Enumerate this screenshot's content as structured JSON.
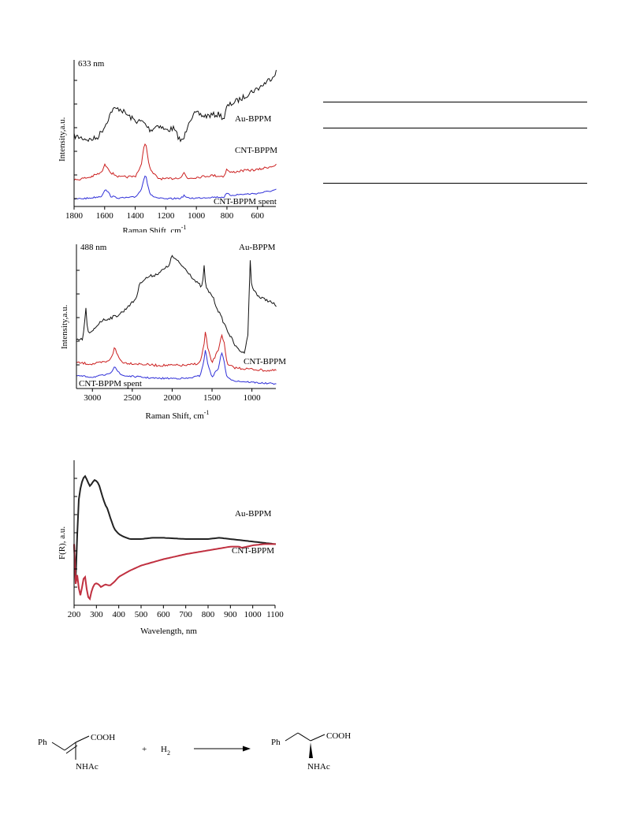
{
  "chart_data": [
    {
      "type": "line",
      "annotation": "633 nm",
      "xlabel": "Raman Shift, cm",
      "xlabel_sup": "-1",
      "ylabel": "Intensity,a.u.",
      "xlim": [
        1800,
        480
      ],
      "x_ticks": [
        1800,
        1600,
        1400,
        1200,
        1000,
        800,
        600
      ],
      "series": [
        {
          "name": "Au-BPPM",
          "color": "#111111",
          "x": [
            1800,
            1700,
            1650,
            1600,
            1550,
            1500,
            1450,
            1400,
            1350,
            1300,
            1250,
            1200,
            1150,
            1100,
            1080,
            1050,
            1020,
            1000,
            950,
            900,
            850,
            820,
            800,
            750,
            700,
            650,
            600,
            550,
            500,
            480
          ],
          "y": [
            0.52,
            0.48,
            0.5,
            0.62,
            0.8,
            0.81,
            0.74,
            0.68,
            0.67,
            0.58,
            0.64,
            0.58,
            0.6,
            0.46,
            0.5,
            0.68,
            0.74,
            0.76,
            0.73,
            0.74,
            0.75,
            0.7,
            0.83,
            0.88,
            0.92,
            0.98,
            1.02,
            1.08,
            1.15,
            1.2
          ]
        },
        {
          "name": "CNT-BPPM",
          "color": "#cc2020",
          "x": [
            1800,
            1700,
            1620,
            1600,
            1580,
            1560,
            1500,
            1400,
            1360,
            1340,
            1330,
            1320,
            1300,
            1250,
            1200,
            1100,
            1080,
            1060,
            1000,
            900,
            820,
            800,
            780,
            700,
            600,
            500,
            480
          ],
          "y": [
            0.22,
            0.25,
            0.3,
            0.38,
            0.36,
            0.3,
            0.25,
            0.26,
            0.38,
            0.6,
            0.62,
            0.48,
            0.32,
            0.24,
            0.23,
            0.25,
            0.3,
            0.24,
            0.25,
            0.27,
            0.26,
            0.34,
            0.3,
            0.32,
            0.33,
            0.37,
            0.38
          ]
        },
        {
          "name": "CNT-BPPM spent",
          "color": "#3030d8",
          "x": [
            1800,
            1700,
            1620,
            1600,
            1580,
            1560,
            1500,
            1400,
            1360,
            1340,
            1330,
            1320,
            1300,
            1250,
            1200,
            1100,
            1080,
            1060,
            1000,
            900,
            820,
            800,
            780,
            700,
            600,
            500,
            480
          ],
          "y": [
            0.02,
            0.03,
            0.05,
            0.12,
            0.1,
            0.05,
            0.03,
            0.04,
            0.12,
            0.26,
            0.28,
            0.18,
            0.06,
            0.03,
            0.02,
            0.03,
            0.06,
            0.03,
            0.03,
            0.04,
            0.04,
            0.08,
            0.06,
            0.07,
            0.08,
            0.11,
            0.12
          ]
        }
      ]
    },
    {
      "type": "line",
      "annotation": "488 nm",
      "xlabel": "Raman Shift, cm",
      "xlabel_sup": "-1",
      "ylabel": "Intensity,a.u.",
      "xlim": [
        3200,
        700
      ],
      "x_ticks": [
        3000,
        2500,
        2000,
        1500,
        1000
      ],
      "series": [
        {
          "name": "Au-BPPM",
          "color": "#111111",
          "x": [
            3200,
            3120,
            3080,
            3060,
            3030,
            3000,
            2900,
            2800,
            2700,
            2600,
            2550,
            2500,
            2450,
            2400,
            2300,
            2200,
            2100,
            2050,
            2000,
            1950,
            1900,
            1800,
            1700,
            1620,
            1600,
            1580,
            1560,
            1500,
            1450,
            1400,
            1300,
            1200,
            1100,
            1050,
            1030,
            1020,
            1010,
            1000,
            900,
            800,
            700
          ],
          "y": [
            0.35,
            0.36,
            0.6,
            0.42,
            0.4,
            0.42,
            0.5,
            0.52,
            0.54,
            0.58,
            0.62,
            0.64,
            0.68,
            0.8,
            0.84,
            0.86,
            0.9,
            0.92,
            1.0,
            0.97,
            0.94,
            0.88,
            0.8,
            0.76,
            0.94,
            0.76,
            0.74,
            0.7,
            0.62,
            0.55,
            0.42,
            0.3,
            0.25,
            0.4,
            0.8,
            1.0,
            0.8,
            0.76,
            0.68,
            0.66,
            0.62
          ]
        },
        {
          "name": "CNT-BPPM",
          "color": "#cc2020",
          "x": [
            3200,
            3000,
            2800,
            2750,
            2720,
            2700,
            2650,
            2600,
            2400,
            2200,
            2000,
            1800,
            1650,
            1600,
            1580,
            1560,
            1500,
            1420,
            1380,
            1350,
            1320,
            1300,
            1200,
            1000,
            800,
            700
          ],
          "y": [
            0.18,
            0.17,
            0.19,
            0.24,
            0.3,
            0.26,
            0.2,
            0.18,
            0.17,
            0.16,
            0.16,
            0.16,
            0.18,
            0.32,
            0.44,
            0.3,
            0.18,
            0.28,
            0.4,
            0.34,
            0.2,
            0.16,
            0.14,
            0.13,
            0.12,
            0.12
          ]
        },
        {
          "name": "CNT-BPPM spent",
          "color": "#3030d8",
          "x": [
            3200,
            3000,
            2800,
            2750,
            2720,
            2700,
            2650,
            2600,
            2400,
            2200,
            2000,
            1800,
            1650,
            1600,
            1580,
            1560,
            1500,
            1420,
            1380,
            1350,
            1320,
            1300,
            1200,
            1000,
            800,
            700
          ],
          "y": [
            0.08,
            0.07,
            0.09,
            0.12,
            0.16,
            0.13,
            0.09,
            0.08,
            0.07,
            0.06,
            0.06,
            0.06,
            0.08,
            0.2,
            0.3,
            0.18,
            0.07,
            0.14,
            0.26,
            0.2,
            0.08,
            0.06,
            0.04,
            0.03,
            0.02,
            0.02
          ]
        }
      ]
    },
    {
      "type": "line",
      "xlabel": "Wavelength, nm",
      "ylabel": "F(R), a.u.",
      "xlim": [
        200,
        1100
      ],
      "x_ticks": [
        200,
        300,
        400,
        500,
        600,
        700,
        800,
        900,
        1000,
        1100
      ],
      "series": [
        {
          "name": "Au-BPPM",
          "color": "#222222",
          "x": [
            205,
            210,
            220,
            230,
            240,
            250,
            260,
            270,
            280,
            290,
            300,
            310,
            320,
            330,
            340,
            350,
            360,
            380,
            400,
            420,
            450,
            500,
            550,
            600,
            700,
            800,
            850,
            900,
            1000,
            1100
          ],
          "y": [
            0.05,
            0.35,
            0.8,
            0.92,
            0.98,
            1.0,
            0.96,
            0.92,
            0.94,
            0.97,
            0.96,
            0.94,
            0.88,
            0.82,
            0.77,
            0.74,
            0.68,
            0.58,
            0.54,
            0.52,
            0.5,
            0.5,
            0.51,
            0.51,
            0.5,
            0.5,
            0.51,
            0.5,
            0.48,
            0.46
          ]
        },
        {
          "name": "CNT-BPPM",
          "color": "#c03040",
          "x": [
            205,
            210,
            220,
            230,
            240,
            250,
            260,
            270,
            280,
            290,
            300,
            310,
            320,
            340,
            360,
            380,
            400,
            450,
            500,
            600,
            700,
            800,
            900,
            940,
            950,
            1000,
            1050,
            1100
          ],
          "y": [
            0.05,
            0.28,
            0.12,
            0.04,
            0.18,
            0.2,
            0.05,
            0.02,
            0.1,
            0.14,
            0.15,
            0.14,
            0.12,
            0.14,
            0.13,
            0.16,
            0.2,
            0.25,
            0.29,
            0.34,
            0.38,
            0.41,
            0.44,
            0.44,
            0.43,
            0.45,
            0.46,
            0.46
          ]
        }
      ]
    }
  ],
  "legend_labels": {
    "p1_au": "Au-BPPM",
    "p1_cnt": "CNT-BPPM",
    "p1_spent": "CNT-BPPM spent",
    "p2_au": "Au-BPPM",
    "p2_cnt": "CNT-BPPM",
    "p2_spent": "CNT-BPPM spent",
    "p3_au": "Au-BPPM",
    "p3_cnt": "CNT-BPPM"
  },
  "scheme": {
    "reactant_ph": "Ph",
    "reactant_cooh": "COOH",
    "reactant_nhac": "NHAc",
    "plus": "+",
    "h2": "H",
    "h2_sub": "2",
    "product_ph": "Ph",
    "product_cooh": "COOH",
    "product_nhac": "NHAc"
  }
}
